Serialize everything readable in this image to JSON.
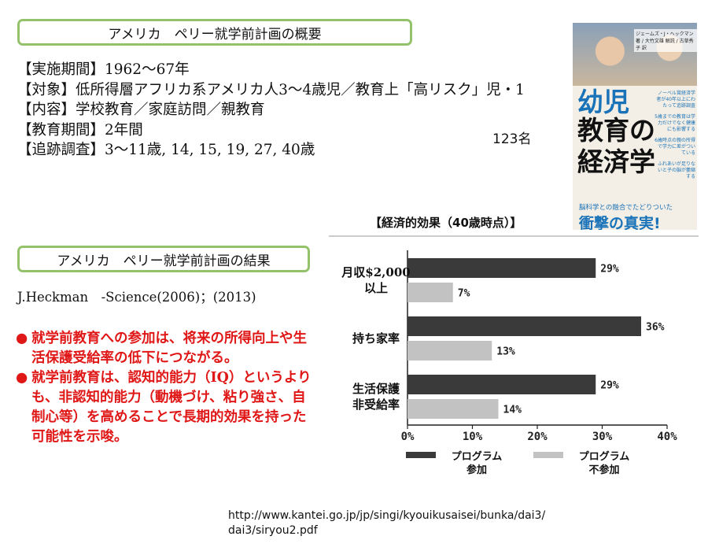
{
  "overview": {
    "heading": "アメリカ　ペリー就学前計画の概要",
    "lines": [
      "【実施期間】1962～67年",
      "【対象】低所得層アフリカ系アメリカ人3～4歳児／教育上「高リスク」児・1",
      "【内容】学校教育／家庭訪問／親教育",
      "【教育期間】2年間",
      "【追跡調査】3～11歳, 14, 15, 19, 27, 40歳"
    ],
    "count": "123名"
  },
  "results": {
    "heading": "アメリカ　ペリー就学前計画の結果",
    "citation": "J.Heckman　-Science(2006)；(2013)",
    "bullet_glyph": "●",
    "findings": [
      "就学前教育への参加は、将来の所得向上や生活保護受給率の低下につながる。",
      "就学前教育は、認知的能力（IQ）というよりも、非認知的能力（動機づけ、粘り強さ、自制心等）を高めることで長期的効果を持った可能性を示唆。"
    ]
  },
  "book": {
    "authors": "ジェームズ・J・ヘックマン 著 / 大竹文雄 解説 / 古草秀子 訳",
    "title_line1": "幼児",
    "title_line2": "教育の",
    "title_line3": "経済学",
    "side_blurbs": [
      "ノーベル賞経済学者が40年以上にわたって追跡調査",
      "5歳までの教育は学力だけでなく健康にも影響する",
      "6歳時点の親の所得で学力に差がついている",
      "ふれあいが足りないと子の脳が萎縮する"
    ],
    "subtitle": "脳科学との融合でたどりついた",
    "headline": "衝撃の真実!",
    "title_color": "#1a73b8"
  },
  "chart_data": {
    "type": "bar",
    "orientation": "horizontal",
    "title": "【経済的効果（40歳時点）】",
    "categories": [
      [
        "月収$2,000",
        "以上"
      ],
      [
        "持ち家率"
      ],
      [
        "生活保護",
        "非受給率"
      ]
    ],
    "series": [
      {
        "name": "プログラム参加",
        "label_lines": [
          "プログラム",
          "参加"
        ],
        "values": [
          29,
          36,
          29
        ],
        "color": "#3a3a3a"
      },
      {
        "name": "プログラム不参加",
        "label_lines": [
          "プログラム",
          "不参加"
        ],
        "values": [
          7,
          13,
          14
        ],
        "color": "#c2c2c2"
      }
    ],
    "x_ticks": [
      "0%",
      "10%",
      "20%",
      "30%",
      "40%"
    ],
    "xlim": [
      0,
      40
    ],
    "value_suffix": "%",
    "legend": "bottom",
    "grid": false
  },
  "source_url": {
    "line1": "http://www.kantei.go.jp/jp/singi/kyouikusaisei/bunka/dai3/",
    "line2": "dai3/siryou2.pdf"
  }
}
